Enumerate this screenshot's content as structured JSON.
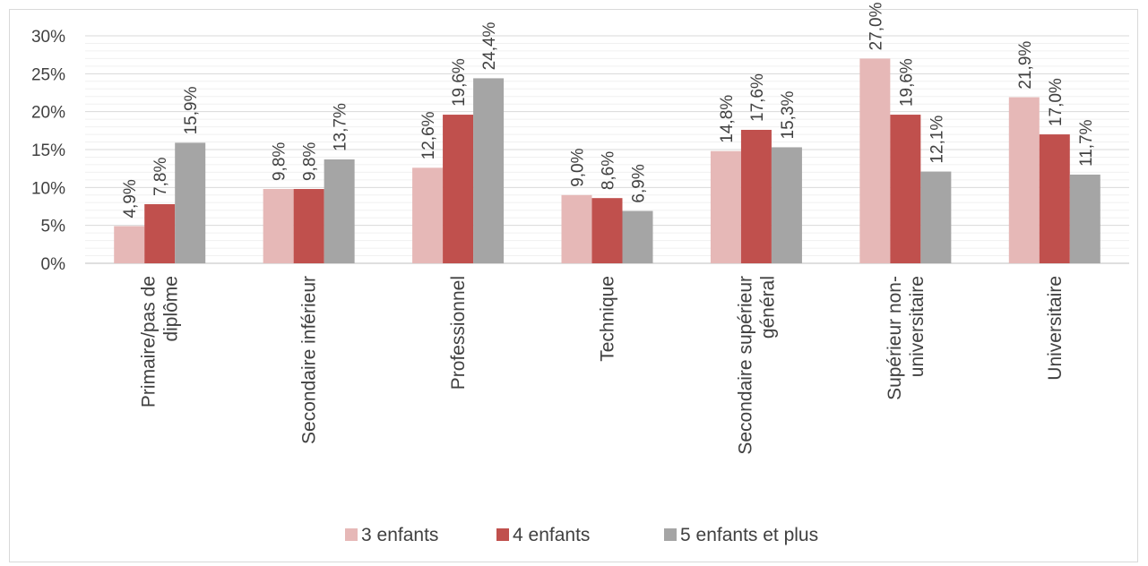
{
  "chart_data": {
    "type": "bar",
    "categories": [
      [
        "Primaire/pas de",
        "diplôme"
      ],
      [
        "Secondaire inférieur"
      ],
      [
        "Professionnel"
      ],
      [
        "Technique"
      ],
      [
        "Secondaire supérieur",
        "général"
      ],
      [
        "Supérieur non-",
        "universitaire"
      ],
      [
        "Universitaire"
      ]
    ],
    "series": [
      {
        "name": "3 enfants",
        "color": "#e6b8b7",
        "values": [
          4.9,
          9.8,
          12.6,
          9.0,
          14.8,
          27.0,
          21.9
        ],
        "labels": [
          "4,9%",
          "9,8%",
          "12,6%",
          "9,0%",
          "14,8%",
          "27,0%",
          "21,9%"
        ]
      },
      {
        "name": "4 enfants",
        "color": "#c0504d",
        "values": [
          7.8,
          9.8,
          19.6,
          8.6,
          17.6,
          19.6,
          17.0
        ],
        "labels": [
          "7,8%",
          "9,8%",
          "19,6%",
          "8,6%",
          "17,6%",
          "19,6%",
          "17,0%"
        ]
      },
      {
        "name": "5 enfants et plus",
        "color": "#a5a5a5",
        "values": [
          15.9,
          13.7,
          24.4,
          6.9,
          15.3,
          12.1,
          11.7
        ],
        "labels": [
          "15,9%",
          "13,7%",
          "24,4%",
          "6,9%",
          "15,3%",
          "12,1%",
          "11,7%"
        ]
      }
    ],
    "ylim": [
      0,
      30
    ],
    "yticks": [
      "0%",
      "5%",
      "10%",
      "15%",
      "20%",
      "25%",
      "30%"
    ],
    "grid": true,
    "legend": "bottom",
    "title": "",
    "xlabel": "",
    "ylabel": ""
  }
}
